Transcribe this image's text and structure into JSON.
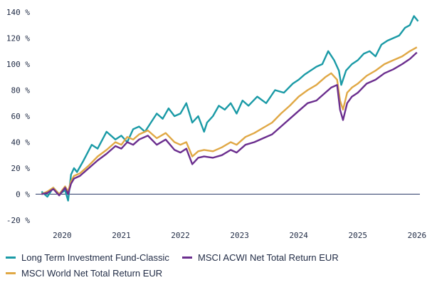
{
  "chart_data": {
    "type": "line",
    "ylim": [
      -20,
      140
    ],
    "y_ticks": [
      -20,
      0,
      20,
      40,
      60,
      80,
      100,
      120,
      140
    ],
    "y_tick_labels": [
      "-20 %",
      "0 %",
      "20 %",
      "40 %",
      "60 %",
      "80 %",
      "100 %",
      "120 %",
      "140 %"
    ],
    "x_ticks": [
      2020,
      2021,
      2022,
      2023,
      2024,
      2025,
      2026
    ],
    "x_tick_labels": [
      "2020",
      "2021",
      "2022",
      "2023",
      "2024",
      "2025",
      "2026"
    ],
    "x_range": [
      2019.55,
      2026.05
    ],
    "grid": false,
    "zero_line": true,
    "legend_placement": "bottom",
    "series": [
      {
        "name": "Long Term Investment Fund-Classic",
        "color": "#1a9aa6",
        "x": [
          2019.65,
          2019.75,
          2019.85,
          2019.95,
          2020.05,
          2020.1,
          2020.15,
          2020.2,
          2020.25,
          2020.35,
          2020.5,
          2020.6,
          2020.75,
          2020.9,
          2021.0,
          2021.1,
          2021.2,
          2021.3,
          2021.4,
          2021.5,
          2021.6,
          2021.7,
          2021.8,
          2021.9,
          2022.0,
          2022.1,
          2022.2,
          2022.3,
          2022.4,
          2022.45,
          2022.55,
          2022.65,
          2022.75,
          2022.85,
          2022.95,
          2023.05,
          2023.15,
          2023.3,
          2023.45,
          2023.6,
          2023.75,
          2023.9,
          2024.0,
          2024.1,
          2024.2,
          2024.3,
          2024.4,
          2024.5,
          2024.6,
          2024.68,
          2024.72,
          2024.8,
          2024.9,
          2025.0,
          2025.1,
          2025.2,
          2025.3,
          2025.4,
          2025.5,
          2025.6,
          2025.7,
          2025.8,
          2025.88,
          2025.95,
          2026.02
        ],
        "values": [
          2,
          -2,
          5,
          0,
          3,
          -5,
          15,
          20,
          17,
          25,
          38,
          35,
          48,
          42,
          45,
          40,
          50,
          52,
          48,
          55,
          62,
          58,
          66,
          60,
          62,
          70,
          55,
          60,
          48,
          55,
          60,
          68,
          65,
          70,
          62,
          72,
          68,
          75,
          70,
          80,
          78,
          85,
          88,
          92,
          95,
          98,
          100,
          110,
          103,
          95,
          84,
          95,
          100,
          103,
          108,
          110,
          106,
          115,
          118,
          120,
          122,
          128,
          130,
          137,
          133
        ]
      },
      {
        "name": "MSCI ACWI Net Total Return EUR",
        "color": "#6b2e8e",
        "x": [
          2019.65,
          2019.75,
          2019.85,
          2019.95,
          2020.05,
          2020.1,
          2020.15,
          2020.2,
          2020.3,
          2020.45,
          2020.6,
          2020.75,
          2020.9,
          2021.0,
          2021.1,
          2021.2,
          2021.3,
          2021.45,
          2021.6,
          2021.75,
          2021.9,
          2022.0,
          2022.1,
          2022.2,
          2022.3,
          2022.4,
          2022.55,
          2022.7,
          2022.85,
          2022.95,
          2023.1,
          2023.25,
          2023.4,
          2023.55,
          2023.7,
          2023.85,
          2024.0,
          2024.15,
          2024.3,
          2024.45,
          2024.55,
          2024.65,
          2024.7,
          2024.75,
          2024.82,
          2024.9,
          2025.0,
          2025.15,
          2025.3,
          2025.45,
          2025.6,
          2025.75,
          2025.88,
          2026.0
        ],
        "values": [
          0,
          1,
          4,
          -1,
          5,
          0,
          8,
          12,
          14,
          20,
          26,
          31,
          37,
          35,
          40,
          38,
          42,
          45,
          38,
          42,
          34,
          32,
          35,
          23,
          28,
          29,
          28,
          30,
          34,
          32,
          38,
          40,
          43,
          46,
          52,
          58,
          64,
          70,
          72,
          78,
          82,
          84,
          65,
          57,
          70,
          75,
          78,
          85,
          88,
          93,
          96,
          100,
          104,
          109
        ]
      },
      {
        "name": "MSCI World Net Total Return EUR",
        "color": "#e0a845",
        "x": [
          2019.65,
          2019.75,
          2019.85,
          2019.95,
          2020.05,
          2020.1,
          2020.15,
          2020.2,
          2020.3,
          2020.45,
          2020.6,
          2020.75,
          2020.9,
          2021.0,
          2021.1,
          2021.2,
          2021.3,
          2021.45,
          2021.6,
          2021.75,
          2021.9,
          2022.0,
          2022.1,
          2022.2,
          2022.3,
          2022.4,
          2022.55,
          2022.7,
          2022.85,
          2022.95,
          2023.1,
          2023.25,
          2023.4,
          2023.55,
          2023.7,
          2023.85,
          2024.0,
          2024.15,
          2024.3,
          2024.45,
          2024.55,
          2024.65,
          2024.7,
          2024.75,
          2024.82,
          2024.9,
          2025.0,
          2025.15,
          2025.3,
          2025.45,
          2025.6,
          2025.75,
          2025.88,
          2026.0
        ],
        "values": [
          0,
          2,
          5,
          0,
          6,
          2,
          10,
          14,
          16,
          22,
          29,
          34,
          40,
          38,
          44,
          42,
          46,
          49,
          43,
          47,
          40,
          38,
          40,
          29,
          33,
          34,
          33,
          36,
          40,
          38,
          44,
          47,
          51,
          55,
          62,
          68,
          75,
          80,
          84,
          90,
          93,
          88,
          72,
          65,
          78,
          82,
          85,
          91,
          95,
          100,
          103,
          106,
          110,
          113
        ]
      }
    ]
  }
}
